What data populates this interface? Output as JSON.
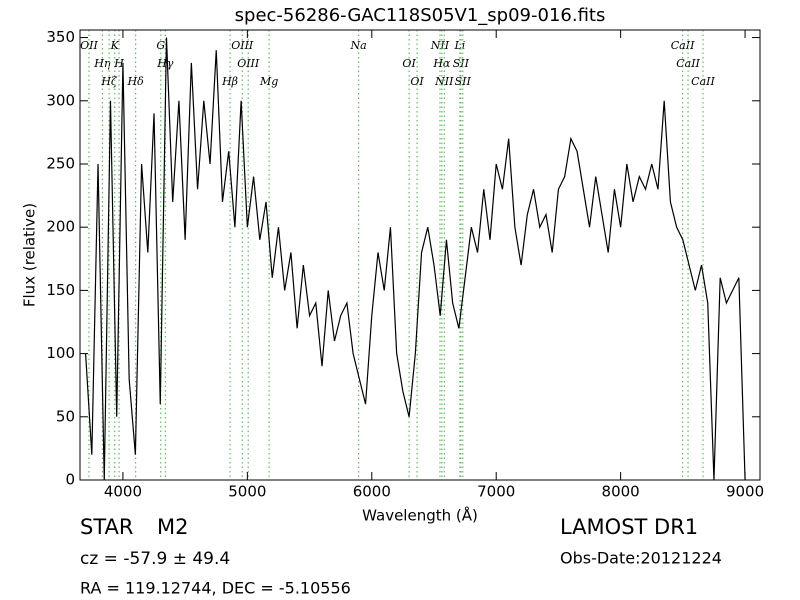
{
  "chart_data": {
    "type": "line",
    "title": "spec-56286-GAC118S05V1_sp09-016.fits",
    "xlabel": "Wavelength (Å)",
    "ylabel": "Flux (relative)",
    "xlim": [
      3655,
      9120
    ],
    "ylim": [
      0,
      356
    ],
    "xticks": [
      4000,
      5000,
      6000,
      7000,
      8000,
      9000
    ],
    "yticks": [
      0,
      50,
      100,
      150,
      200,
      250,
      300,
      350
    ],
    "color": "#000000",
    "line_color": "#66bb66",
    "x": [
      3700,
      3750,
      3800,
      3850,
      3900,
      3950,
      4000,
      4050,
      4100,
      4150,
      4200,
      4250,
      4300,
      4350,
      4400,
      4450,
      4500,
      4550,
      4600,
      4650,
      4700,
      4750,
      4800,
      4850,
      4900,
      4950,
      5000,
      5050,
      5100,
      5150,
      5200,
      5250,
      5300,
      5350,
      5400,
      5450,
      5500,
      5550,
      5600,
      5650,
      5700,
      5750,
      5800,
      5850,
      5900,
      5950,
      6000,
      6050,
      6100,
      6150,
      6200,
      6250,
      6300,
      6350,
      6400,
      6450,
      6500,
      6550,
      6600,
      6650,
      6700,
      6750,
      6800,
      6850,
      6900,
      6950,
      7000,
      7050,
      7100,
      7150,
      7200,
      7250,
      7300,
      7350,
      7400,
      7450,
      7500,
      7550,
      7600,
      7650,
      7700,
      7750,
      7800,
      7850,
      7900,
      7950,
      8000,
      8050,
      8100,
      8150,
      8200,
      8250,
      8300,
      8350,
      8400,
      8450,
      8500,
      8550,
      8600,
      8650,
      8700,
      8750,
      8800,
      8850,
      8900,
      8950,
      9000
    ],
    "values": [
      100,
      20,
      250,
      0,
      300,
      50,
      330,
      80,
      20,
      250,
      180,
      290,
      60,
      350,
      220,
      300,
      190,
      330,
      230,
      300,
      250,
      340,
      220,
      260,
      200,
      300,
      200,
      240,
      190,
      220,
      160,
      200,
      150,
      180,
      120,
      170,
      130,
      140,
      90,
      150,
      110,
      130,
      140,
      100,
      80,
      60,
      130,
      180,
      150,
      200,
      100,
      70,
      50,
      100,
      180,
      200,
      170,
      130,
      190,
      140,
      120,
      160,
      200,
      180,
      230,
      190,
      250,
      230,
      270,
      200,
      170,
      210,
      230,
      200,
      210,
      180,
      230,
      240,
      270,
      260,
      230,
      200,
      240,
      210,
      180,
      230,
      200,
      250,
      220,
      240,
      230,
      250,
      230,
      300,
      220,
      200,
      190,
      170,
      150,
      170,
      140,
      0,
      160,
      140,
      150,
      160,
      0
    ],
    "annotations": [
      {
        "label": "OII",
        "x": 3727
      },
      {
        "label": "Hη",
        "x": 3835
      },
      {
        "label": "Hζ",
        "x": 3889
      },
      {
        "label": "K",
        "x": 3934
      },
      {
        "label": "H",
        "x": 3969
      },
      {
        "label": "Hδ",
        "x": 4102
      },
      {
        "label": "G",
        "x": 4304
      },
      {
        "label": "Hγ",
        "x": 4341
      },
      {
        "label": "Hβ",
        "x": 4861
      },
      {
        "label": "OIII",
        "x": 4959
      },
      {
        "label": "OIII",
        "x": 5007
      },
      {
        "label": "Mg",
        "x": 5175
      },
      {
        "label": "Na",
        "x": 5894
      },
      {
        "label": "OI",
        "x": 6300
      },
      {
        "label": "OI",
        "x": 6364
      },
      {
        "label": "NII",
        "x": 6548
      },
      {
        "label": "Hα",
        "x": 6563
      },
      {
        "label": "NII",
        "x": 6583
      },
      {
        "label": "Li",
        "x": 6708
      },
      {
        "label": "SII",
        "x": 6716
      },
      {
        "label": "SII",
        "x": 6731
      },
      {
        "label": "CaII",
        "x": 8498
      },
      {
        "label": "CaII",
        "x": 8542
      },
      {
        "label": "CaII",
        "x": 8662
      }
    ]
  },
  "info": {
    "class": "STAR",
    "subclass": "M2",
    "cz": "cz = -57.9  ± 49.4",
    "coords": "RA = 119.12744, DEC = -5.10556",
    "survey": "LAMOST DR1",
    "date": "Obs-Date:20121224"
  }
}
